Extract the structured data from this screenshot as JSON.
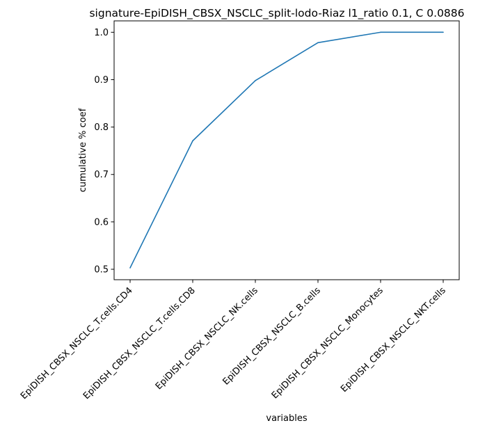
{
  "chart_data": {
    "type": "line",
    "title": "signature-EpiDISH_CBSX_NSCLC_split-lodo-Riaz l1_ratio 0.1, C 0.0886",
    "xlabel": "variables",
    "ylabel": "cumulative % coef",
    "categories": [
      "EpiDISH_CBSX_NSCLC_T.cells.CD4",
      "EpiDISH_CBSX_NSCLC_T.cells.CD8",
      "EpiDISH_CBSX_NSCLC_NK.cells",
      "EpiDISH_CBSX_NSCLC_B.cells",
      "EpiDISH_CBSX_NSCLC_Monocytes",
      "EpiDISH_CBSX_NSCLC_NKT.cells"
    ],
    "values": [
      0.503,
      0.771,
      0.898,
      0.978,
      1.0,
      1.0
    ],
    "yticks": [
      "0.5",
      "0.6",
      "0.7",
      "0.8",
      "0.9",
      "1.0"
    ],
    "ylim": [
      0.478,
      1.024
    ],
    "grid": false,
    "line_color": "#1f77b4"
  }
}
